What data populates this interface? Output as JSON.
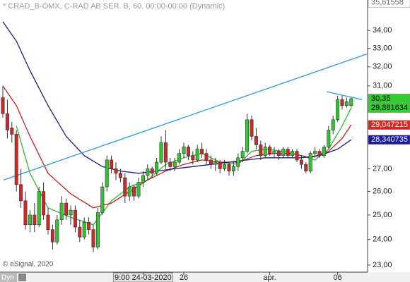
{
  "chart_data": {
    "type": "candlestick",
    "title": "* CRAD_B-OMX, C-RAD AB SER. B, 60, 00:00-00:00 (Dynamic)",
    "credit": "© eSignal, 2020",
    "mode_label": "Dyn",
    "log_scale": true,
    "ylim": [
      22.73,
      35.77
    ],
    "yticks": [
      {
        "value": 23,
        "label": "23,00"
      },
      {
        "value": 24,
        "label": "24,00"
      },
      {
        "value": 25,
        "label": "25,00"
      },
      {
        "value": 26,
        "label": "26,00"
      },
      {
        "value": 27,
        "label": "27,00"
      },
      {
        "value": 31,
        "label": "31,00"
      },
      {
        "value": 32,
        "label": "32,00"
      },
      {
        "value": 33,
        "label": "33,00"
      },
      {
        "value": 34,
        "label": "34,00"
      }
    ],
    "categories": [
      null,
      null,
      null,
      null,
      null,
      null,
      null,
      null,
      null,
      null,
      null,
      null,
      null,
      null,
      null,
      null,
      null,
      null,
      null,
      null,
      null,
      null,
      null,
      null,
      null,
      null,
      null,
      null,
      null,
      null,
      null,
      "9:00 24-03-2020",
      null,
      null,
      null,
      null,
      null,
      null,
      null,
      null,
      "26",
      null,
      null,
      null,
      null,
      null,
      null,
      null,
      null,
      null,
      null,
      null,
      null,
      null,
      null,
      null,
      null,
      null,
      null,
      "apr.",
      null,
      null,
      null,
      null,
      null,
      null,
      null,
      null,
      null,
      null,
      null,
      null,
      null,
      null,
      "06",
      null,
      null,
      null
    ],
    "up_color": "#33c433",
    "down_color": "#cc2a2a",
    "ohlc": [
      [
        30.4,
        31.0,
        29.4,
        29.6
      ],
      [
        29.6,
        30.3,
        28.4,
        28.8
      ],
      [
        28.9,
        29.2,
        28.2,
        28.6
      ],
      [
        28.6,
        28.8,
        26.0,
        26.3
      ],
      [
        26.3,
        27.0,
        25.3,
        25.6
      ],
      [
        25.6,
        26.0,
        24.4,
        24.6
      ],
      [
        24.6,
        25.2,
        24.3,
        25.0
      ],
      [
        25.0,
        25.5,
        24.3,
        24.6
      ],
      [
        24.6,
        26.2,
        24.5,
        26.0
      ],
      [
        26.0,
        26.4,
        24.8,
        25.0
      ],
      [
        25.0,
        25.3,
        24.2,
        24.4
      ],
      [
        24.4,
        24.6,
        23.6,
        23.9
      ],
      [
        23.9,
        25.0,
        23.8,
        24.8
      ],
      [
        24.8,
        25.8,
        24.6,
        25.5
      ],
      [
        25.5,
        25.7,
        24.8,
        25.0
      ],
      [
        25.0,
        25.4,
        24.6,
        25.2
      ],
      [
        25.2,
        25.4,
        24.3,
        24.5
      ],
      [
        24.5,
        24.8,
        23.9,
        24.1
      ],
      [
        24.1,
        24.9,
        24.0,
        24.7
      ],
      [
        24.7,
        24.9,
        24.2,
        24.4
      ],
      [
        24.4,
        24.6,
        23.5,
        23.7
      ],
      [
        23.7,
        25.3,
        23.6,
        25.1
      ],
      [
        25.1,
        26.4,
        25.0,
        26.2
      ],
      [
        26.2,
        27.6,
        26.0,
        27.4
      ],
      [
        27.4,
        27.6,
        26.8,
        27.0
      ],
      [
        27.0,
        27.3,
        26.5,
        26.8
      ],
      [
        26.8,
        27.0,
        26.4,
        26.6
      ],
      [
        26.6,
        26.8,
        25.5,
        25.8
      ],
      [
        25.8,
        26.4,
        25.6,
        26.2
      ],
      [
        26.2,
        26.3,
        25.6,
        25.8
      ],
      [
        25.8,
        26.6,
        25.7,
        26.4
      ],
      [
        26.4,
        26.9,
        26.2,
        26.7
      ],
      [
        26.7,
        27.2,
        26.5,
        27.0
      ],
      [
        27.0,
        27.1,
        26.6,
        26.8
      ],
      [
        26.8,
        27.5,
        26.7,
        27.3
      ],
      [
        27.3,
        28.5,
        27.2,
        28.2
      ],
      [
        28.2,
        28.8,
        27.0,
        27.3
      ],
      [
        27.3,
        27.5,
        26.9,
        27.1
      ],
      [
        27.1,
        27.5,
        26.9,
        27.3
      ],
      [
        27.3,
        27.9,
        27.2,
        27.7
      ],
      [
        27.7,
        28.2,
        27.5,
        28.0
      ],
      [
        28.0,
        28.1,
        27.4,
        27.6
      ],
      [
        27.6,
        27.8,
        27.2,
        27.4
      ],
      [
        27.4,
        28.1,
        27.3,
        27.9
      ],
      [
        27.9,
        28.2,
        27.5,
        27.7
      ],
      [
        27.7,
        27.9,
        27.2,
        27.4
      ],
      [
        27.4,
        27.6,
        27.0,
        27.2
      ],
      [
        27.2,
        27.5,
        26.9,
        27.3
      ],
      [
        27.3,
        27.4,
        26.8,
        27.0
      ],
      [
        27.0,
        27.4,
        26.9,
        27.2
      ],
      [
        27.2,
        27.3,
        26.7,
        26.9
      ],
      [
        26.9,
        27.3,
        26.7,
        27.1
      ],
      [
        27.1,
        27.7,
        26.9,
        27.5
      ],
      [
        27.5,
        28.0,
        27.3,
        27.8
      ],
      [
        27.8,
        29.6,
        27.7,
        29.3
      ],
      [
        29.3,
        29.5,
        28.3,
        28.5
      ],
      [
        28.5,
        28.9,
        27.9,
        28.1
      ],
      [
        28.1,
        28.3,
        27.4,
        27.6
      ],
      [
        27.6,
        28.2,
        27.5,
        28.0
      ],
      [
        28.0,
        28.1,
        27.6,
        27.7
      ],
      [
        27.7,
        28.0,
        27.5,
        27.8
      ],
      [
        27.8,
        27.9,
        27.4,
        27.6
      ],
      [
        27.6,
        28.0,
        27.5,
        27.9
      ],
      [
        27.9,
        28.0,
        27.5,
        27.6
      ],
      [
        27.6,
        27.9,
        27.5,
        27.8
      ],
      [
        27.8,
        27.9,
        27.3,
        27.4
      ],
      [
        27.4,
        27.6,
        27.0,
        27.2
      ],
      [
        27.2,
        27.3,
        26.8,
        26.9
      ],
      [
        26.9,
        27.8,
        26.8,
        27.7
      ],
      [
        27.7,
        28.0,
        27.5,
        27.8
      ],
      [
        27.8,
        27.9,
        27.5,
        27.6
      ],
      [
        27.6,
        28.1,
        27.5,
        28.0
      ],
      [
        28.0,
        29.0,
        27.9,
        28.8
      ],
      [
        28.8,
        29.5,
        28.6,
        29.3
      ],
      [
        29.3,
        30.5,
        29.2,
        30.3
      ],
      [
        30.3,
        30.5,
        29.8,
        30.0
      ],
      [
        30.0,
        30.4,
        29.9,
        30.2
      ],
      [
        30.0,
        30.4,
        29.9,
        30.35
      ]
    ],
    "lines": [
      {
        "color": "#2eb82e",
        "x": [
          3,
          6,
          10,
          15,
          20,
          24,
          28,
          32,
          36,
          40,
          44,
          48,
          52,
          55,
          58,
          62,
          66,
          69,
          72,
          75,
          77
        ],
        "values": [
          29.0,
          26.8,
          25.3,
          24.9,
          24.6,
          25.6,
          26.2,
          26.5,
          27.2,
          27.5,
          27.7,
          27.3,
          27.2,
          27.8,
          27.9,
          27.8,
          27.6,
          27.4,
          27.9,
          29.0,
          29.88
        ]
      },
      {
        "color": "#c02020",
        "x": [
          0,
          3,
          6,
          10,
          15,
          20,
          24,
          28,
          32,
          36,
          40,
          44,
          48,
          52,
          56,
          60,
          64,
          68,
          72,
          75,
          77
        ],
        "values": [
          31.0,
          30.0,
          28.5,
          26.8,
          25.9,
          25.3,
          25.5,
          26.0,
          26.5,
          26.9,
          27.2,
          27.4,
          27.3,
          27.3,
          27.6,
          27.7,
          27.7,
          27.5,
          27.8,
          28.4,
          29.05
        ]
      },
      {
        "color": "#1a1a8c",
        "x": [
          0,
          3,
          6,
          10,
          14,
          18,
          22,
          26,
          30,
          34,
          38,
          42,
          46,
          50,
          54,
          58,
          62,
          66,
          70,
          74,
          77
        ],
        "values": [
          34.5,
          33.4,
          31.8,
          30.0,
          28.5,
          27.6,
          27.1,
          26.9,
          26.8,
          26.9,
          27.0,
          27.1,
          27.2,
          27.3,
          27.4,
          27.5,
          27.5,
          27.5,
          27.6,
          27.9,
          28.34
        ]
      }
    ],
    "trendlines": [
      {
        "color": "#3aa0e0",
        "x": [
          0.16,
          80.6
        ],
        "values": [
          26.5,
          32.7
        ]
      },
      {
        "color": "#3aa0e0",
        "x": [
          71.6,
          79.4
        ],
        "values": [
          30.7,
          30.3
        ]
      }
    ],
    "price_labels": [
      {
        "value": 35.61558,
        "label": "35,61558",
        "color": "#ffffff",
        "text_color": "#666666"
      },
      {
        "value": 30.35,
        "label": "30,35",
        "color": "#33cc33",
        "text_color": "#000000"
      },
      {
        "value": 29.881634,
        "label": "29,881634",
        "color": "#33cc33",
        "text_color": "#000000"
      },
      {
        "value": 29.047215,
        "label": "29,047215",
        "color": "#dd2222",
        "text_color": "#ffffff"
      },
      {
        "value": 28.340735,
        "label": "28,340735",
        "color": "#1a1a9c",
        "text_color": "#ffffff"
      }
    ]
  }
}
